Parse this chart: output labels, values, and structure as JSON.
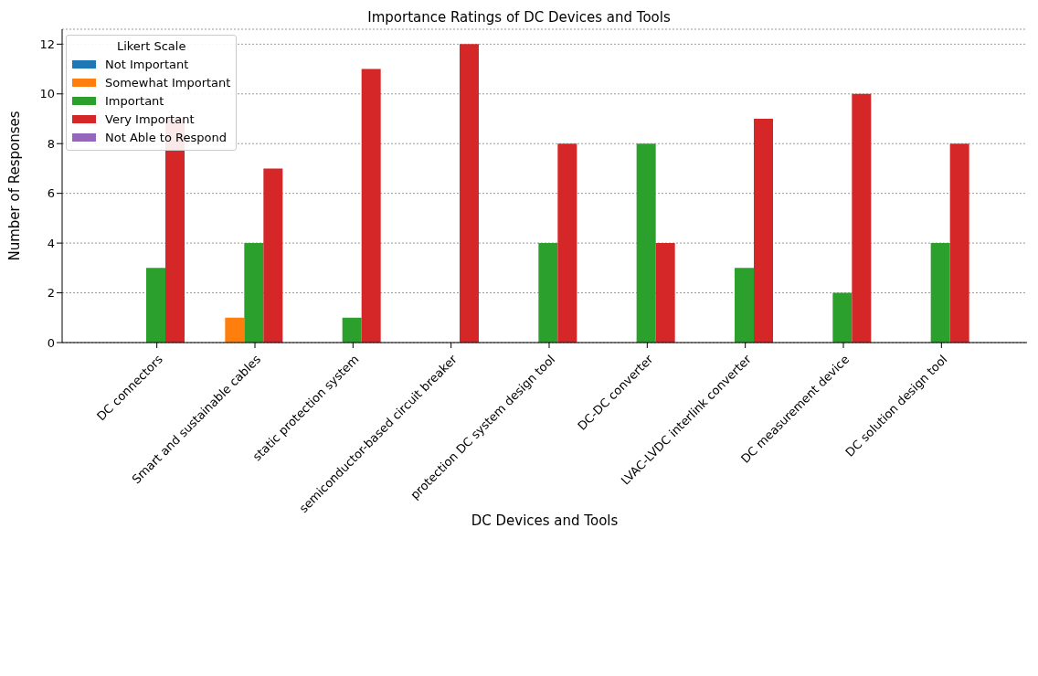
{
  "chart_data": {
    "type": "bar",
    "title": "Importance Ratings of DC Devices and Tools",
    "xlabel": "DC Devices and Tools",
    "ylabel": "Number of Responses",
    "legend_title": "Likert Scale",
    "categories": [
      "DC connectors",
      "Smart and sustainable cables",
      "static protection system",
      "semiconductor-based circuit breaker",
      "protection DC system design tool",
      "DC-DC converter",
      "LVAC-LVDC interlink converter",
      "DC measurement device",
      "DC solution design tool"
    ],
    "series": [
      {
        "name": "Not Important",
        "color": "#1f77b4",
        "values": [
          0,
          0,
          0,
          0,
          0,
          0,
          0,
          0,
          0
        ]
      },
      {
        "name": "Somewhat Important",
        "color": "#ff7f0e",
        "values": [
          0,
          1,
          0,
          0,
          0,
          0,
          0,
          0,
          0
        ]
      },
      {
        "name": "Important",
        "color": "#2ca02c",
        "values": [
          3,
          4,
          1,
          0,
          4,
          8,
          3,
          2,
          4
        ]
      },
      {
        "name": "Very Important",
        "color": "#d62728",
        "values": [
          9,
          7,
          11,
          12,
          8,
          4,
          9,
          10,
          8
        ]
      },
      {
        "name": "Not Able to Respond",
        "color": "#9467bd",
        "values": [
          0,
          0,
          0,
          0,
          0,
          0,
          0,
          0,
          0
        ]
      }
    ],
    "ylim": [
      0,
      12.6
    ],
    "yticks": [
      0,
      2,
      4,
      6,
      8,
      10,
      12
    ],
    "grid": "y",
    "legend": "top left"
  }
}
